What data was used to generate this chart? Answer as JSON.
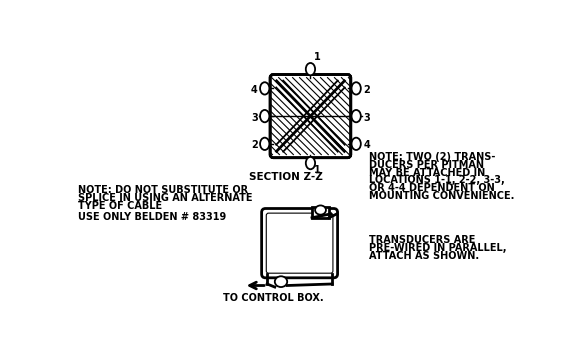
{
  "bg_color": "#ffffff",
  "fig_width": 5.74,
  "fig_height": 3.58,
  "note_left_1": "NOTE: DO NOT SUBSTITUTE OR",
  "note_left_2": "SPLICE IN USING AN ALTERNATE",
  "note_left_3": "TYPE OF CABLE",
  "note_left_4": "USE ONLY BELDEN # 83319",
  "section_label": "SECTION Z-Z",
  "note_right_1": "NOTE: TWO (2) TRANS-",
  "note_right_2": "DUCERS PER PITMAN",
  "note_right_3": "MAY BE ATTACHED IN",
  "note_right_4": "LOCATIONS 1-1, 2-2, 3-3,",
  "note_right_5": "OR 4-4 DEPENDENT ON",
  "note_right_6": "MOUNTING CONVENIENCE.",
  "note_right_7": "TRANSDUCERS ARE",
  "note_right_8": "PRE-WIRED IN PARALLEL,",
  "note_right_9": "ATTACH AS SHOWN.",
  "control_label": "TO CONTROL BOX."
}
